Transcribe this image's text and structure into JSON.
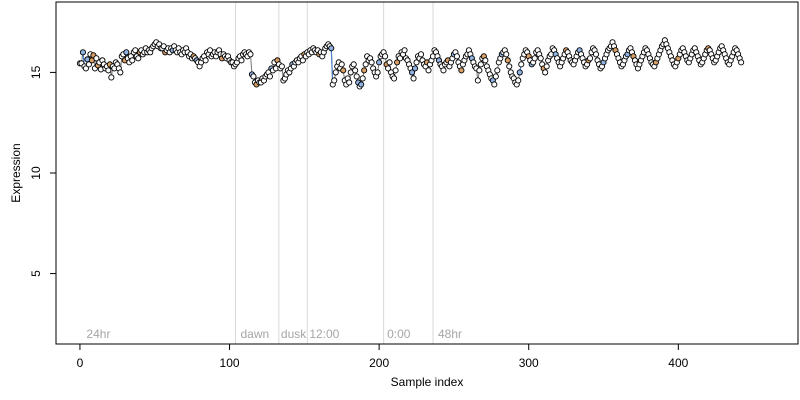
{
  "chart_data": {
    "type": "scatter",
    "title": "",
    "xlabel": "Sample index",
    "ylabel": "Expression",
    "xlim": [
      -16,
      480
    ],
    "ylim": [
      1.5,
      18.5
    ],
    "x_ticks": [
      0,
      100,
      200,
      300,
      400
    ],
    "y_ticks": [
      5,
      10,
      15
    ],
    "grid": false,
    "legend": "none",
    "colors": {
      "point_default": "#ffffff",
      "point_tan": "#d9a066",
      "point_blue": "#8fb4e3",
      "trend_line": "#777777",
      "trend_line_blue": "#4a7fc9",
      "divider": "#d9d9d9",
      "annotation": "#a6a6a6"
    },
    "dividers": [
      104,
      133,
      152,
      203,
      236
    ],
    "annotations": [
      {
        "x": 3,
        "label": "24hr"
      },
      {
        "x": 106,
        "label": "dawn"
      },
      {
        "x": 133,
        "label": "dusk"
      },
      {
        "x": 152,
        "label": "12:00"
      },
      {
        "x": 204,
        "label": "0:00"
      },
      {
        "x": 238,
        "label": "48hr"
      }
    ],
    "series": [
      {
        "values": [
          15.45,
          15.45,
          16.0,
          15.3,
          15.2,
          15.65,
          15.4,
          15.9,
          15.6,
          15.85,
          15.2,
          15.7,
          15.35,
          15.5,
          15.15,
          15.6,
          15.4,
          15.2,
          15.3,
          15.1,
          15.4,
          14.75,
          15.3,
          15.2,
          15.5,
          15.4,
          15.2,
          15.0,
          15.8,
          15.9,
          15.6,
          16.0,
          15.7,
          15.5,
          15.8,
          15.6,
          16.0,
          16.1,
          15.8,
          15.7,
          16.0,
          16.1,
          15.9,
          16.0,
          16.2,
          16.0,
          16.1,
          16.0,
          16.2,
          16.3,
          16.4,
          16.5,
          16.3,
          16.4,
          16.2,
          16.2,
          16.3,
          16.0,
          16.1,
          16.2,
          16.0,
          16.2,
          16.1,
          16.3,
          16.1,
          16.0,
          16.2,
          16.0,
          15.9,
          16.1,
          16.0,
          16.2,
          16.0,
          15.8,
          15.9,
          15.7,
          15.8,
          15.7,
          15.6,
          15.5,
          15.3,
          15.5,
          15.7,
          15.8,
          15.6,
          16.0,
          15.9,
          16.1,
          15.8,
          15.9,
          16.0,
          15.8,
          16.0,
          16.1,
          15.9,
          15.7,
          15.9,
          15.8,
          15.7,
          15.8,
          15.6,
          15.5,
          15.5,
          15.3,
          15.4,
          15.5,
          15.7,
          15.8,
          15.6,
          15.9,
          16.0,
          15.9,
          15.8,
          16.0,
          15.9,
          14.9,
          14.8,
          14.5,
          14.4,
          14.6,
          14.5,
          14.5,
          14.7,
          14.6,
          14.8,
          14.9,
          15.0,
          14.8,
          15.2,
          15.1,
          15.5,
          15.2,
          15.6,
          15.4,
          15.2,
          15.3,
          14.6,
          14.7,
          14.9,
          15.1,
          15.0,
          15.2,
          15.4,
          15.3,
          15.5,
          15.6,
          15.5,
          15.7,
          15.8,
          15.6,
          15.9,
          15.8,
          16.0,
          15.9,
          16.1,
          16.0,
          16.2,
          16.1,
          16.0,
          16.1,
          15.9,
          16.0,
          15.8,
          16.0,
          16.2,
          16.3,
          16.4,
          16.3,
          16.2,
          14.4,
          14.6,
          15.0,
          15.3,
          15.5,
          15.2,
          15.4,
          15.1,
          14.6,
          14.4,
          14.7,
          14.5,
          15.0,
          15.3,
          15.4,
          15.1,
          14.8,
          14.5,
          14.3,
          14.4,
          14.7,
          15.1,
          15.4,
          15.8,
          15.6,
          15.7,
          15.5,
          15.2,
          15.0,
          14.8,
          15.0,
          15.5,
          15.8,
          15.9,
          16.0,
          15.8,
          15.4,
          15.2,
          15.5,
          15.0,
          14.8,
          14.7,
          15.1,
          15.5,
          15.8,
          15.7,
          16.0,
          15.9,
          16.1,
          15.7,
          15.6,
          15.4,
          15.2,
          15.0,
          14.7,
          15.2,
          15.5,
          15.8,
          15.7,
          15.9,
          15.6,
          15.4,
          15.3,
          15.5,
          15.1,
          15.4,
          15.6,
          15.8,
          16.1,
          16.0,
          15.8,
          15.6,
          15.4,
          15.3,
          15.1,
          15.4,
          15.5,
          15.6,
          15.3,
          15.5,
          15.7,
          15.9,
          16.0,
          15.8,
          15.5,
          15.3,
          15.1,
          15.4,
          15.6,
          15.8,
          15.9,
          16.1,
          15.9,
          15.7,
          15.5,
          15.3,
          15.2,
          14.6,
          15.1,
          15.4,
          15.7,
          15.8,
          15.6,
          15.3,
          15.1,
          14.9,
          14.7,
          14.6,
          14.4,
          14.8,
          15.1,
          15.5,
          15.7,
          15.9,
          16.0,
          16.1,
          15.9,
          15.6,
          15.3,
          15.0,
          14.8,
          14.7,
          14.5,
          14.4,
          14.6,
          15.0,
          15.4,
          15.7,
          15.9,
          16.1,
          16.0,
          15.8,
          15.6,
          15.4,
          15.5,
          15.7,
          16.0,
          16.1,
          15.9,
          15.7,
          15.4,
          15.2,
          15.0,
          15.3,
          15.6,
          15.8,
          15.9,
          16.2,
          16.1,
          15.9,
          15.7,
          15.5,
          15.3,
          15.5,
          15.7,
          15.9,
          16.1,
          16.0,
          15.8,
          15.6,
          15.5,
          15.4,
          15.6,
          15.8,
          16.0,
          16.1,
          15.9,
          15.7,
          15.5,
          15.3,
          15.4,
          15.6,
          15.7,
          16.0,
          16.2,
          16.1,
          15.9,
          15.6,
          15.4,
          15.2,
          15.3,
          15.5,
          15.7,
          15.9,
          16.1,
          16.2,
          16.3,
          16.5,
          16.3,
          16.1,
          15.9,
          15.7,
          15.5,
          15.3,
          15.4,
          15.6,
          15.8,
          15.9,
          16.1,
          16.2,
          16.0,
          15.8,
          15.6,
          15.4,
          15.2,
          15.4,
          15.6,
          15.8,
          16.0,
          16.2,
          16.1,
          15.9,
          15.7,
          15.5,
          15.4,
          15.3,
          15.5,
          15.7,
          15.9,
          16.1,
          16.3,
          16.4,
          16.6,
          16.4,
          16.2,
          16.0,
          15.8,
          15.6,
          15.4,
          15.3,
          15.5,
          15.7,
          15.9,
          16.1,
          16.2,
          16.0,
          15.8,
          15.6,
          15.5,
          15.7,
          15.9,
          16.1,
          16.2,
          16.0,
          15.8,
          15.6,
          15.4,
          15.5,
          15.7,
          15.9,
          16.1,
          16.2,
          16.1,
          15.9,
          15.7,
          15.5,
          15.6,
          15.8,
          16.0,
          16.2,
          16.3,
          16.1,
          15.9,
          15.7,
          15.5,
          15.4,
          15.6,
          15.8,
          16.0,
          16.2,
          16.1,
          15.9,
          15.7,
          15.5
        ],
        "tan_indices": [
          8,
          9,
          12,
          20,
          30,
          40,
          57,
          76,
          95,
          118,
          132,
          150,
          160,
          176,
          190,
          205,
          212,
          232,
          246,
          255,
          270,
          286,
          300,
          310,
          325,
          340,
          358,
          370,
          385,
          400,
          420,
          445
        ],
        "blue_indices": [
          2,
          5,
          31,
          62,
          78,
          115,
          128,
          142,
          168,
          186,
          188,
          200,
          222,
          224,
          240,
          250,
          262,
          276,
          282,
          294,
          302,
          318,
          334,
          350,
          366
        ]
      }
    ]
  }
}
